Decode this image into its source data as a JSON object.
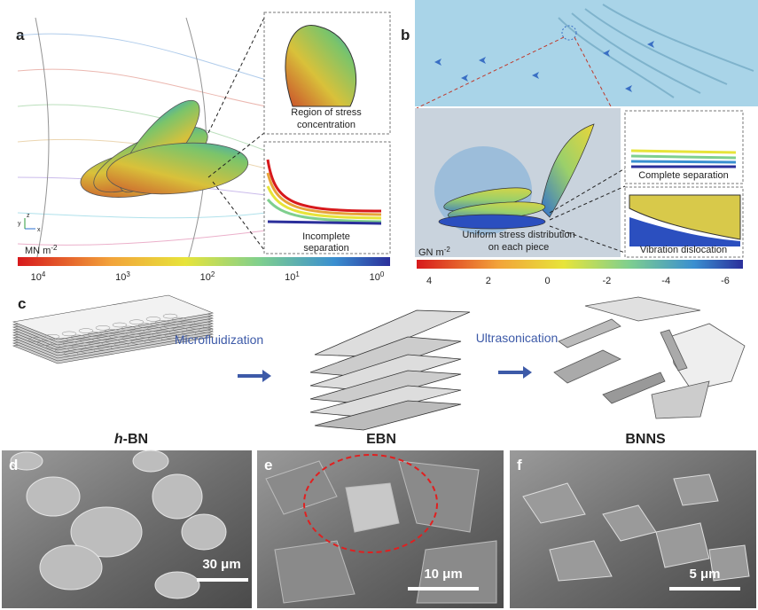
{
  "panels": {
    "a": {
      "label": "a",
      "axes": [
        "y",
        "z",
        "x"
      ],
      "callouts": [
        [
          "Region of stress",
          "concentration"
        ],
        [
          "Incomplete",
          "separation"
        ]
      ],
      "colorbar": {
        "unit": {
          "text": "MN m",
          "sup": "-2"
        },
        "ticks": [
          {
            "base": "10",
            "exp": "4"
          },
          {
            "base": "10",
            "exp": "3"
          },
          {
            "base": "10",
            "exp": "2"
          },
          {
            "base": "10",
            "exp": "1"
          },
          {
            "base": "10",
            "exp": "0"
          }
        ]
      }
    },
    "b": {
      "label": "b",
      "callouts": [
        [
          "Uniform  stress distribution",
          "on each piece"
        ],
        [
          "Complete separation"
        ],
        [
          "Vibration dislocation"
        ]
      ],
      "colorbar": {
        "unit": {
          "text": "GN m",
          "sup": "-2"
        },
        "ticks": [
          "4",
          "2",
          "0",
          "-2",
          "-4",
          "-6"
        ]
      }
    },
    "c": {
      "label": "c",
      "arrows": [
        "Microfluidization",
        "Ultrasonication"
      ],
      "materials": [
        {
          "italic": "h",
          "text": "-BN"
        },
        {
          "text": "EBN"
        },
        {
          "text": "BNNS"
        }
      ]
    },
    "d": {
      "label": "d",
      "scale_bar": "30 μm"
    },
    "e": {
      "label": "e",
      "scale_bar": "10 μm"
    },
    "f": {
      "label": "f",
      "scale_bar": "5 μm"
    }
  }
}
